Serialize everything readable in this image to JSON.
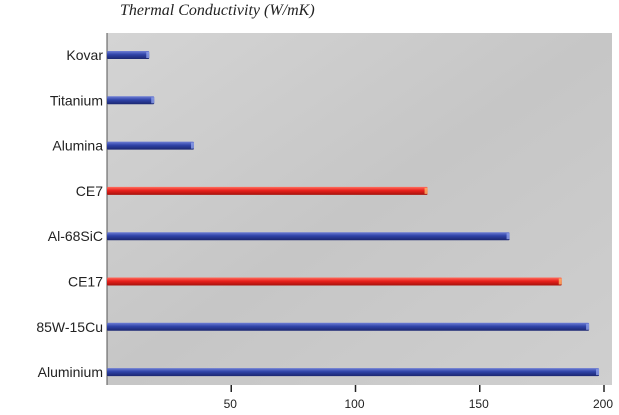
{
  "chart_data": {
    "type": "bar",
    "orientation": "horizontal",
    "title": "Thermal Conductivity (W/mK)",
    "xlabel": "",
    "ylabel": "",
    "categories": [
      "Kovar",
      "Titanium",
      "Alumina",
      "CE7",
      "Al-68SiC",
      "CE17",
      "85W-15Cu",
      "Aluminium"
    ],
    "values": [
      17,
      19,
      35,
      129,
      162,
      183,
      194,
      198
    ],
    "highlight": [
      "CE7",
      "CE17"
    ],
    "xlim": [
      0,
      200
    ],
    "xticks": [
      50,
      100,
      150,
      200
    ],
    "grid": false,
    "legend": "none",
    "colors": {
      "bar": "#2f43a8",
      "bar_highlight": "#e8201c",
      "plot_background": "#c9c9c9"
    }
  }
}
